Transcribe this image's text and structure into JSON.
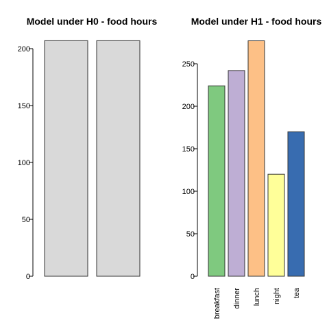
{
  "chart_data": [
    {
      "type": "bar",
      "title": "Model under H0 - food hours",
      "categories": [
        "",
        ""
      ],
      "values": [
        207,
        207
      ],
      "ylim": [
        0,
        210
      ],
      "yticks": [
        0,
        50,
        100,
        150,
        200
      ],
      "colors": [
        "#d9d9d9",
        "#d9d9d9"
      ],
      "grid": false
    },
    {
      "type": "bar",
      "title": "Model under H1 - food hours",
      "categories": [
        "breakfast",
        "dinner",
        "lunch",
        "night",
        "tea"
      ],
      "values": [
        224,
        242,
        277,
        120,
        170
      ],
      "ylim": [
        0,
        280
      ],
      "yticks": [
        0,
        50,
        100,
        150,
        200,
        250
      ],
      "colors": [
        "#7fc97f",
        "#beaed4",
        "#fdc086",
        "#ffff99",
        "#386cb0"
      ],
      "grid": false
    }
  ]
}
